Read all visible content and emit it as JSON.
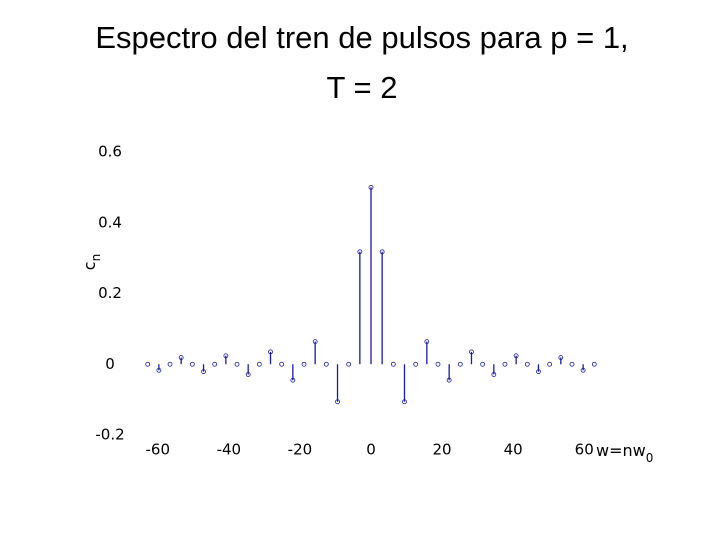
{
  "chart_data": {
    "type": "stem",
    "title_lines": [
      "Espectro del tren de pulsos para p = 1,",
      "T = 2"
    ],
    "ylabel": "c",
    "ylabel_sub": "n",
    "xlabel": "w=nw",
    "xlabel_sub": "0",
    "x": [
      -62.83,
      -59.69,
      -56.55,
      -53.41,
      -50.27,
      -47.12,
      -43.98,
      -40.84,
      -37.7,
      -34.56,
      -31.42,
      -28.27,
      -25.13,
      -21.99,
      -18.85,
      -15.71,
      -12.57,
      -9.42,
      -6.28,
      -3.14,
      0,
      3.14,
      6.28,
      9.42,
      12.57,
      15.71,
      18.85,
      21.99,
      25.13,
      28.27,
      31.42,
      34.56,
      37.7,
      40.84,
      43.98,
      47.12,
      50.27,
      53.41,
      56.55,
      59.69,
      62.83
    ],
    "values": [
      0,
      -0.017,
      0,
      0.019,
      0,
      -0.021,
      0,
      0.024,
      0,
      -0.029,
      0,
      0.035,
      0,
      -0.045,
      0,
      0.064,
      0,
      -0.106,
      0,
      0.318,
      0.5,
      0.318,
      0,
      -0.106,
      0,
      0.064,
      0,
      -0.045,
      0,
      0.035,
      0,
      -0.029,
      0,
      0.024,
      0,
      -0.021,
      0,
      0.019,
      0,
      -0.017,
      0
    ],
    "color": "#1a1aa8",
    "xlim": [
      -65,
      65
    ],
    "xticks": [
      -60,
      -40,
      -20,
      0,
      20,
      40,
      60
    ],
    "ylim": [
      -0.2,
      0.6
    ],
    "yticks": [
      -0.2,
      0,
      0.2,
      0.4,
      0.6
    ]
  }
}
